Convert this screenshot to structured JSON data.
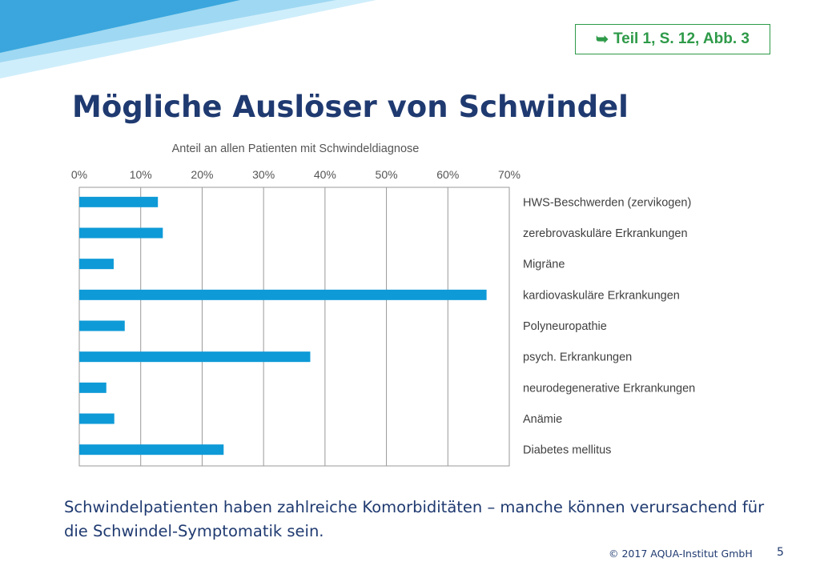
{
  "reference_badge": {
    "icon": "arrow-right-icon",
    "label": "Teil 1, S. 12, Abb. 3"
  },
  "slide_title": "Mögliche Auslöser von Schwindel",
  "chart_data": {
    "type": "bar",
    "orientation": "horizontal",
    "title": "Anteil an allen Patienten mit Schwindeldiagnose",
    "xlim": [
      0,
      70
    ],
    "x_ticks": [
      "0%",
      "10%",
      "20%",
      "30%",
      "40%",
      "50%",
      "60%",
      "70%"
    ],
    "x_tick_values": [
      0,
      10,
      20,
      30,
      40,
      50,
      60,
      70
    ],
    "categories": [
      "HWS-Beschwerden (zervikogen)",
      "zerebrovaskuläre Erkrankungen",
      "Migräne",
      "kardiovaskuläre Erkrankungen",
      "Polyneuropathie",
      "psych. Erkrankungen",
      "neurodegenerative Erkrankungen",
      "Anämie",
      "Diabetes mellitus"
    ],
    "values": [
      12.8,
      13.6,
      5.6,
      66.3,
      7.4,
      37.6,
      4.4,
      5.7,
      23.5
    ],
    "units": "%",
    "grid": true,
    "bar_color": "#0e9ad7"
  },
  "caption_text": "Schwindelpatienten haben zahlreiche Komorbiditäten – manche können verursachend für die Schwindel-Symptomatik sein.",
  "footer_text": "© 2017 AQUA-Institut GmbH",
  "page_number": "5",
  "colors": {
    "title": "#1f3a70",
    "accent_green": "#2e9a48",
    "bar": "#0e9ad7",
    "banner_dark": "#3aa6dd",
    "banner_light": "#a9dcf3"
  }
}
